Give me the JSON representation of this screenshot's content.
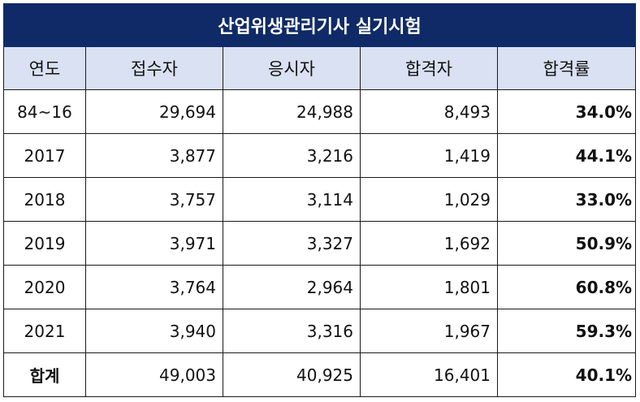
{
  "title": "산업위생관리기사 실기시험",
  "columns": [
    "연도",
    "접수자",
    "응시자",
    "합격자",
    "합격률"
  ],
  "rows": [
    {
      "year": "84~16",
      "applicants": "29,694",
      "examinees": "24,988",
      "passers": "8,493",
      "rate": "34.0%"
    },
    {
      "year": "2017",
      "applicants": "3,877",
      "examinees": "3,216",
      "passers": "1,419",
      "rate": "44.1%"
    },
    {
      "year": "2018",
      "applicants": "3,757",
      "examinees": "3,114",
      "passers": "1,029",
      "rate": "33.0%"
    },
    {
      "year": "2019",
      "applicants": "3,971",
      "examinees": "3,327",
      "passers": "1,692",
      "rate": "50.9%"
    },
    {
      "year": "2020",
      "applicants": "3,764",
      "examinees": "2,964",
      "passers": "1,801",
      "rate": "60.8%"
    },
    {
      "year": "2021",
      "applicants": "3,940",
      "examinees": "3,316",
      "passers": "1,967",
      "rate": "59.3%"
    }
  ],
  "total": {
    "label": "합계",
    "applicants": "49,003",
    "examinees": "40,925",
    "passers": "16,401",
    "rate": "40.1%"
  },
  "colors": {
    "title_bg": "#0f2a66",
    "header_bg": "#d9e1f2",
    "border": "#1a1a1a"
  }
}
